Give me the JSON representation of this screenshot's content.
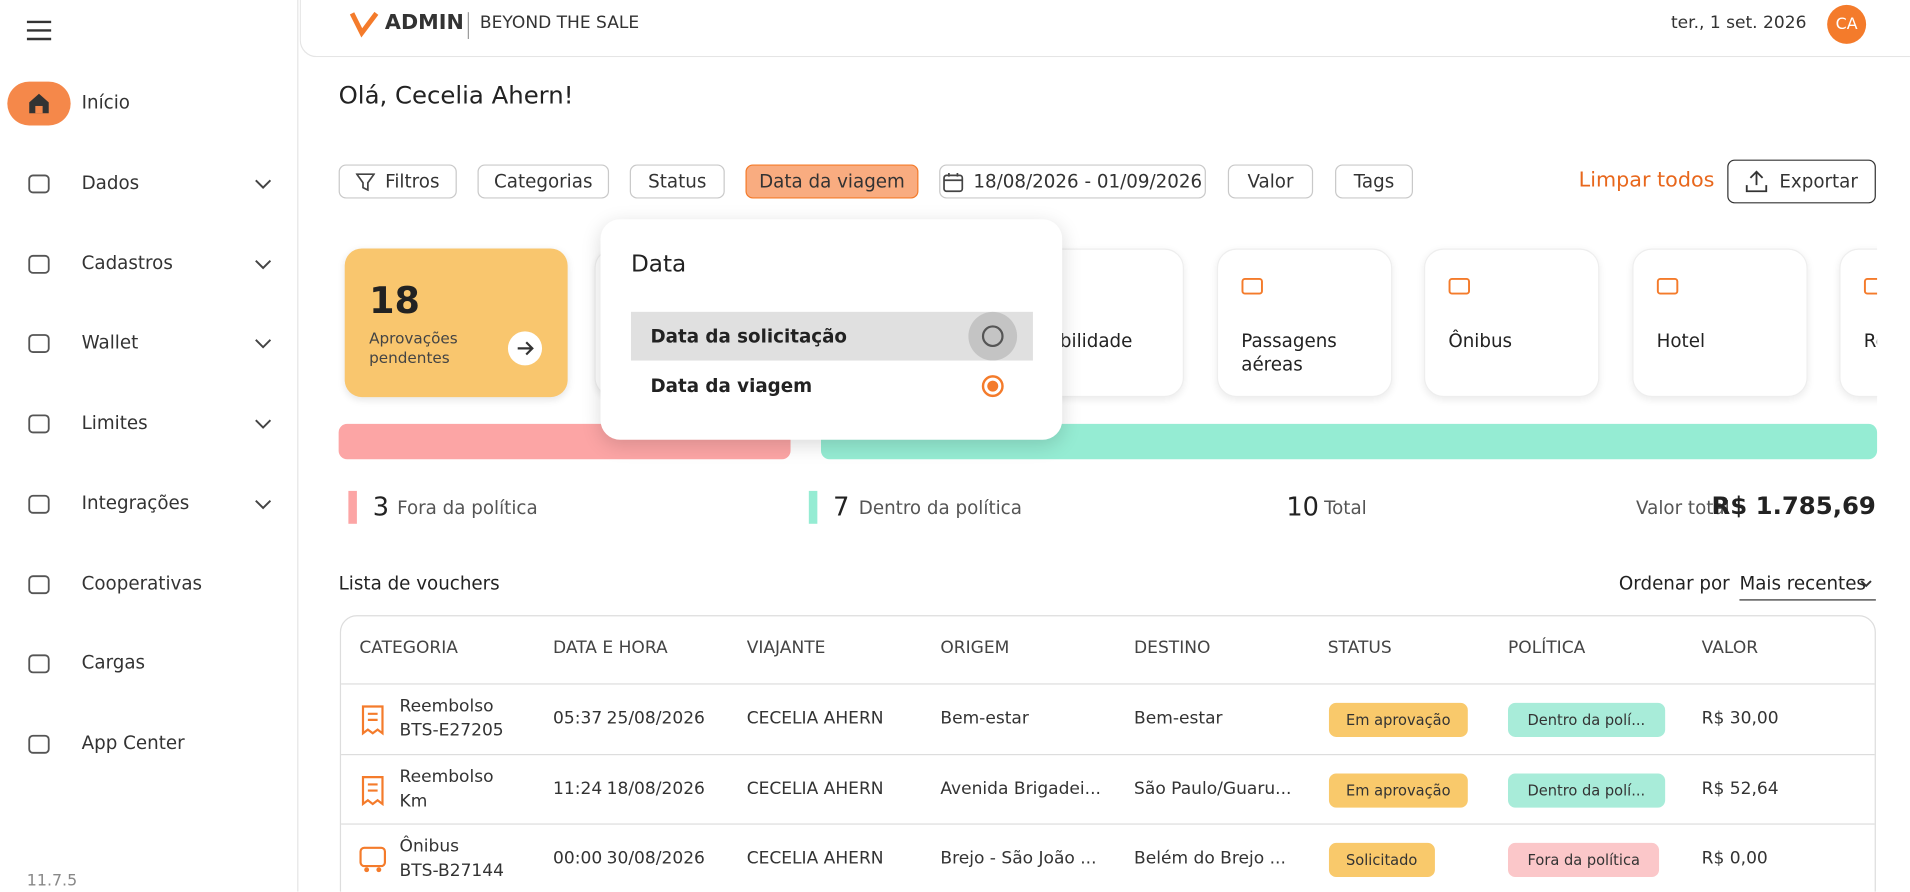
{
  "sidebar": {
    "items": [
      {
        "label": "Início",
        "active": true
      },
      {
        "label": "Dados",
        "expandable": true
      },
      {
        "label": "Cadastros",
        "expandable": true
      },
      {
        "label": "Wallet",
        "expandable": true
      },
      {
        "label": "Limites",
        "expandable": true
      },
      {
        "label": "Integrações",
        "expandable": true
      },
      {
        "label": "Cooperativas"
      },
      {
        "label": "Cargas"
      },
      {
        "label": "App Center"
      }
    ],
    "version": "11.7.5"
  },
  "header": {
    "brand": "ADMIN",
    "tagline": "BEYOND THE SALE",
    "date": "ter., 1 set. 2026",
    "avatar": "CA"
  },
  "greeting": "Olá, Cecelia Ahern!",
  "filters": {
    "chips": [
      {
        "label": "Filtros"
      },
      {
        "label": "Categorias"
      },
      {
        "label": "Status"
      },
      {
        "label": "Data da viagem",
        "active": true
      },
      {
        "label": "18/08/2026 - 01/09/2026"
      },
      {
        "label": "Valor"
      },
      {
        "label": "Tags"
      }
    ],
    "clear": "Limpar todos",
    "export": "Exportar"
  },
  "approvals": {
    "count": 18,
    "label": "Aprovações pendentes"
  },
  "categories": [
    "Mobilidade",
    "Passagens aéreas",
    "Ônibus",
    "Hotel",
    "Reembolso"
  ],
  "summary": {
    "outside": {
      "value": 3,
      "label": "Fora da política"
    },
    "inside": {
      "value": 7,
      "label": "Dentro da política"
    },
    "total": {
      "value": 10,
      "label": "Total"
    },
    "amount": {
      "label": "Valor total",
      "value": "R$ 1.785,69"
    }
  },
  "vouchers": {
    "title": "Lista de vouchers",
    "sort_label": "Ordenar por",
    "sort_value": "Mais recentes",
    "columns": [
      "CATEGORIA",
      "DATA E HORA",
      "VIAJANTE",
      "ORIGEM",
      "DESTINO",
      "STATUS",
      "POLÍTICA",
      "VALOR"
    ],
    "rows": [
      {
        "category": "Reembolso",
        "code": "BTS-E27205",
        "time": "05:37",
        "date": "25/08/2026",
        "traveler": "CECELIA AHERN",
        "origin": "Bem-estar",
        "destination": "Bem-estar",
        "status": "Em aprovação",
        "policy": "Dentro da polí...",
        "policy_ok": true,
        "value": "R$ 30,00"
      },
      {
        "category": "Reembolso",
        "code": "Km",
        "time": "11:24",
        "date": "18/08/2026",
        "traveler": "CECELIA AHERN",
        "origin": "Avenida Brigadei...",
        "destination": "São Paulo/Guaru...",
        "status": "Em aprovação",
        "policy": "Dentro da polí...",
        "policy_ok": true,
        "value": "R$ 52,64"
      },
      {
        "category": "Ônibus",
        "code": "BTS-B27144",
        "time": "00:00",
        "date": "30/08/2026",
        "traveler": "CECELIA AHERN",
        "origin": "Brejo - São João ...",
        "destination": "Belém do Brejo ...",
        "status": "Solicitado",
        "policy": "Fora da política",
        "policy_ok": false,
        "value": "R$ 0,00"
      }
    ]
  },
  "popup": {
    "title": "Data",
    "options": [
      {
        "label": "Data da solicitação",
        "selected": false
      },
      {
        "label": "Data da viagem",
        "selected": true
      }
    ]
  }
}
